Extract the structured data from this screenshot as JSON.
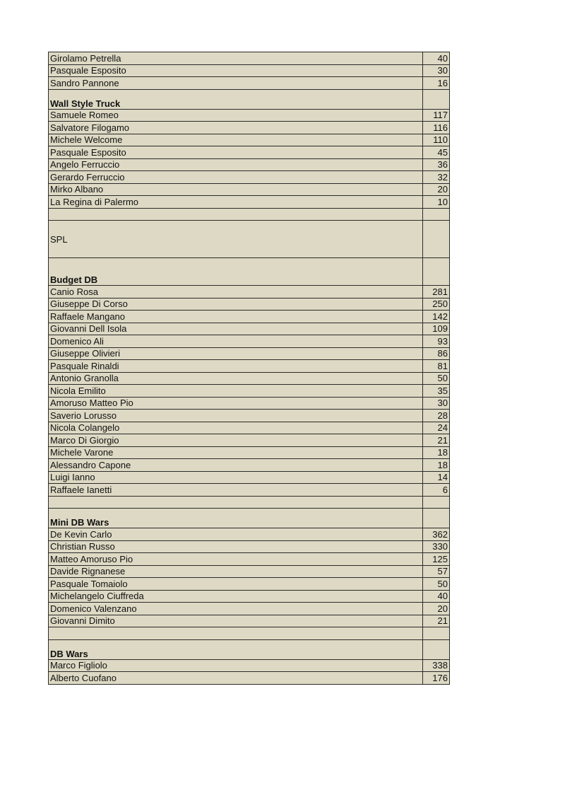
{
  "rows": [
    {
      "type": "row",
      "name": "Girolamo Petrella",
      "value": "40"
    },
    {
      "type": "row",
      "name": "Pasquale Esposito",
      "value": "30"
    },
    {
      "type": "row",
      "name": "Sandro Pannone",
      "value": "16"
    },
    {
      "type": "sec",
      "name": "Wall Style Truck",
      "value": ""
    },
    {
      "type": "row",
      "name": "Samuele Romeo",
      "value": "117"
    },
    {
      "type": "row",
      "name": "Salvatore Filogamo",
      "value": "116"
    },
    {
      "type": "row",
      "name": "Michele Welcome",
      "value": "110"
    },
    {
      "type": "row",
      "name": "Pasquale Esposito",
      "value": "45"
    },
    {
      "type": "row",
      "name": "Angelo Ferruccio",
      "value": "36"
    },
    {
      "type": "row",
      "name": "Gerardo Ferruccio",
      "value": "32"
    },
    {
      "type": "row",
      "name": "Mirko Albano",
      "value": "20"
    },
    {
      "type": "row",
      "name": "La Regina di Palermo",
      "value": "10"
    },
    {
      "type": "empty",
      "name": "",
      "value": ""
    },
    {
      "type": "main",
      "name": "SPL",
      "value": ""
    },
    {
      "type": "sec tall",
      "name": "Budget DB",
      "value": ""
    },
    {
      "type": "row",
      "name": "Canio Rosa",
      "value": "281"
    },
    {
      "type": "row",
      "name": "Giuseppe Di Corso",
      "value": "250"
    },
    {
      "type": "row",
      "name": "Raffaele Mangano",
      "value": "142"
    },
    {
      "type": "row",
      "name": "Giovanni Dell Isola",
      "value": "109"
    },
    {
      "type": "row",
      "name": "Domenico Ali",
      "value": "93"
    },
    {
      "type": "row",
      "name": "Giuseppe Olivieri",
      "value": "86"
    },
    {
      "type": "row",
      "name": "Pasquale Rinaldi",
      "value": "81"
    },
    {
      "type": "row",
      "name": "Antonio Granolla",
      "value": "50"
    },
    {
      "type": "row",
      "name": "Nicola Emilito",
      "value": "35"
    },
    {
      "type": "row",
      "name": "Amoruso Matteo Pio",
      "value": "30"
    },
    {
      "type": "row",
      "name": "Saverio Lorusso",
      "value": "28"
    },
    {
      "type": "row",
      "name": "Nicola Colangelo",
      "value": "24"
    },
    {
      "type": "row",
      "name": "Marco Di Giorgio",
      "value": "21"
    },
    {
      "type": "row",
      "name": "Michele Varone",
      "value": "18"
    },
    {
      "type": "row",
      "name": "Alessandro Capone",
      "value": "18"
    },
    {
      "type": "row",
      "name": "Luigi Ianno",
      "value": "14"
    },
    {
      "type": "row",
      "name": "Raffaele Ianetti",
      "value": "6"
    },
    {
      "type": "empty",
      "name": "",
      "value": ""
    },
    {
      "type": "sec",
      "name": "Mini DB Wars",
      "value": ""
    },
    {
      "type": "row",
      "name": "De Kevin Carlo",
      "value": "362"
    },
    {
      "type": "row",
      "name": "Christian Russo",
      "value": "330"
    },
    {
      "type": "row",
      "name": "Matteo Amoruso Pio",
      "value": "125"
    },
    {
      "type": "row",
      "name": "Davide Rignanese",
      "value": "57"
    },
    {
      "type": "row",
      "name": "Pasquale Tomaiolo",
      "value": "50"
    },
    {
      "type": "row",
      "name": "Michelangelo Ciuffreda",
      "value": "40"
    },
    {
      "type": "row",
      "name": "Domenico Valenzano",
      "value": "20"
    },
    {
      "type": "row",
      "name": "Giovanni Dimito",
      "value": "21"
    },
    {
      "type": "empty",
      "name": "",
      "value": ""
    },
    {
      "type": "sec",
      "name": "DB Wars",
      "value": ""
    },
    {
      "type": "row",
      "name": "Marco Figliolo",
      "value": "338"
    },
    {
      "type": "row",
      "name": "Alberto Cuofano",
      "value": "176"
    }
  ],
  "colors": {
    "cell": "#ddd9c4",
    "section": "#ffff00",
    "category": "#ff0000",
    "border": "#2a2a2a"
  }
}
